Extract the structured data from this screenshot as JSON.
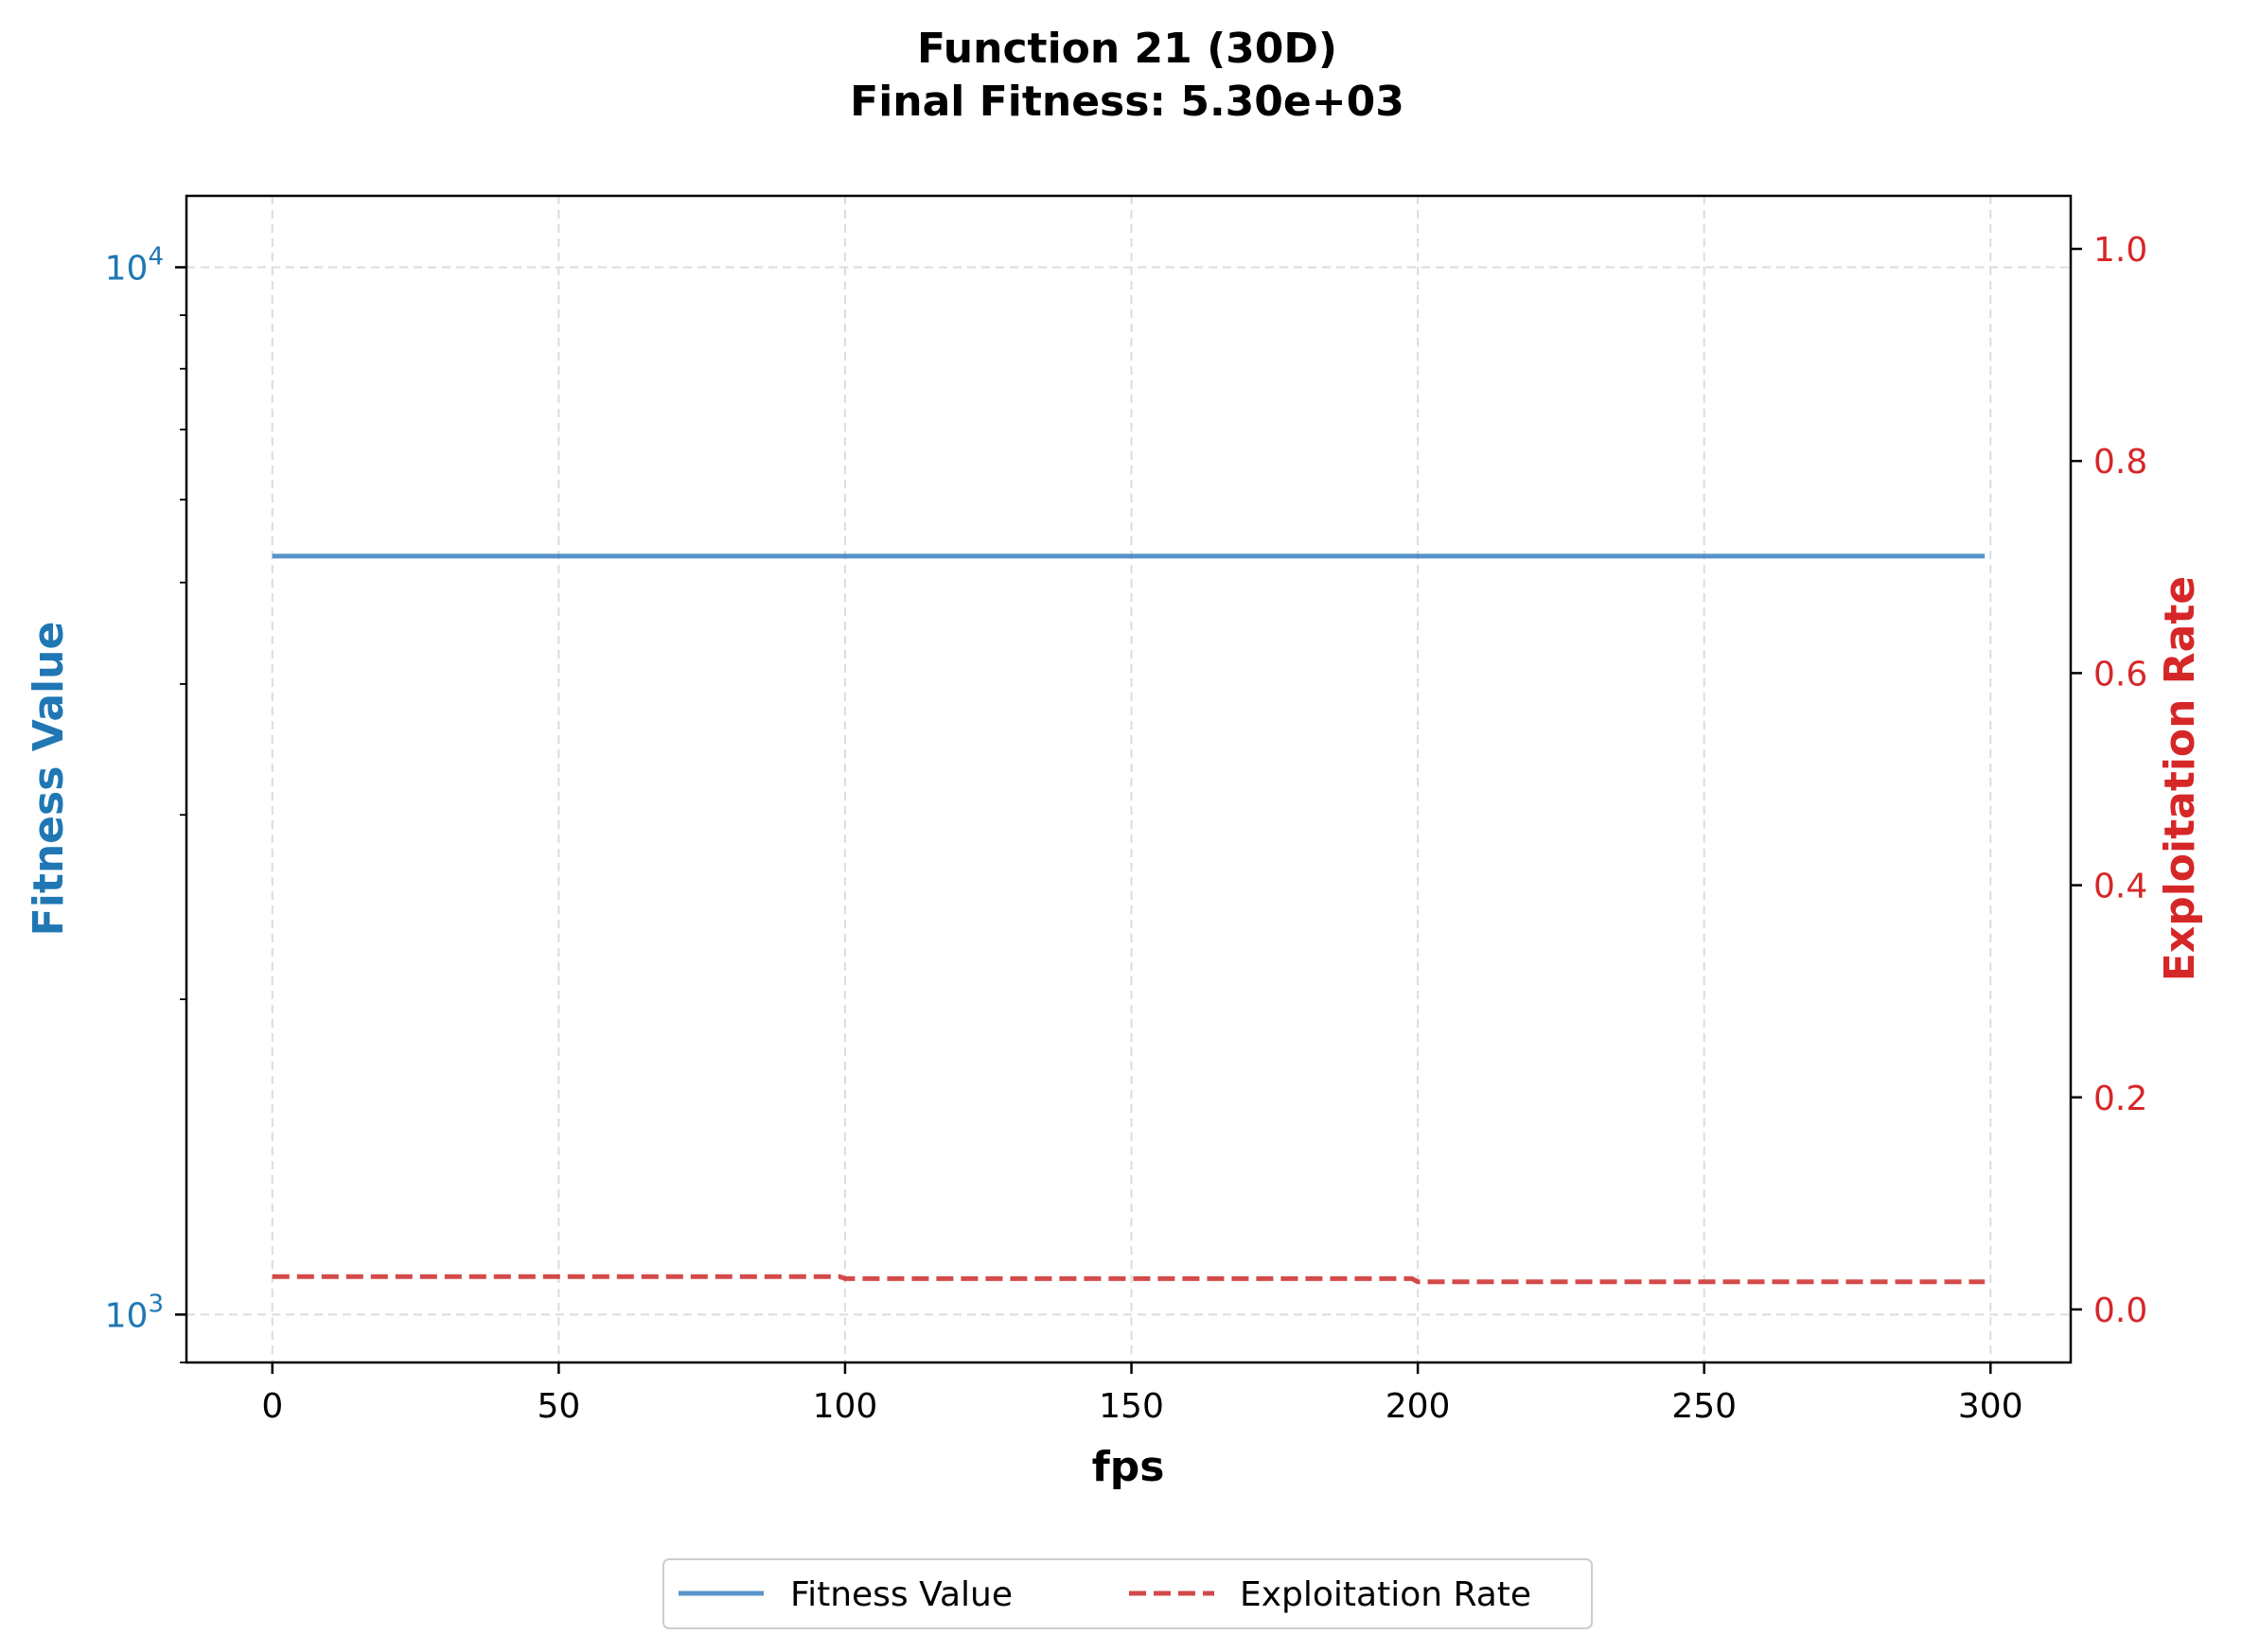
{
  "chart_data": {
    "type": "line",
    "title_line1": "Function 21 (30D)",
    "title_line2": "Final Fitness: 5.30e+03",
    "xlabel": "fps",
    "ylabel_left": "Fitness Value",
    "ylabel_right": "Exploitation Rate",
    "xlim": [
      -15,
      314
    ],
    "x_ticks": [
      0,
      50,
      100,
      150,
      200,
      250,
      300
    ],
    "ylim_left": [
      900,
      11700
    ],
    "yscale_left": "log",
    "y_left_major_ticks": [
      1000,
      10000
    ],
    "y_left_tick_base": "10",
    "y_left_tick_exponents": [
      "3",
      "4"
    ],
    "ylim_right": [
      -0.05,
      1.05
    ],
    "y_right_ticks": [
      "0.0",
      "0.2",
      "0.4",
      "0.6",
      "0.8",
      "1.0"
    ],
    "grid": true,
    "legend_position": "bottom-center",
    "colors": {
      "fitness": "#2e7bbf",
      "exploitation": "#cc2a2a",
      "axis_left": "#1f77b4",
      "axis_right": "#d62728"
    },
    "series": [
      {
        "name": "Fitness Value",
        "axis": "left",
        "style": "solid",
        "x": [
          0,
          299
        ],
        "y": [
          5300,
          5300
        ]
      },
      {
        "name": "Exploitation Rate",
        "axis": "right",
        "style": "dashed",
        "x": [
          0,
          99,
          100,
          199,
          200,
          299
        ],
        "y": [
          0.031,
          0.031,
          0.029,
          0.029,
          0.026,
          0.026
        ]
      }
    ]
  }
}
